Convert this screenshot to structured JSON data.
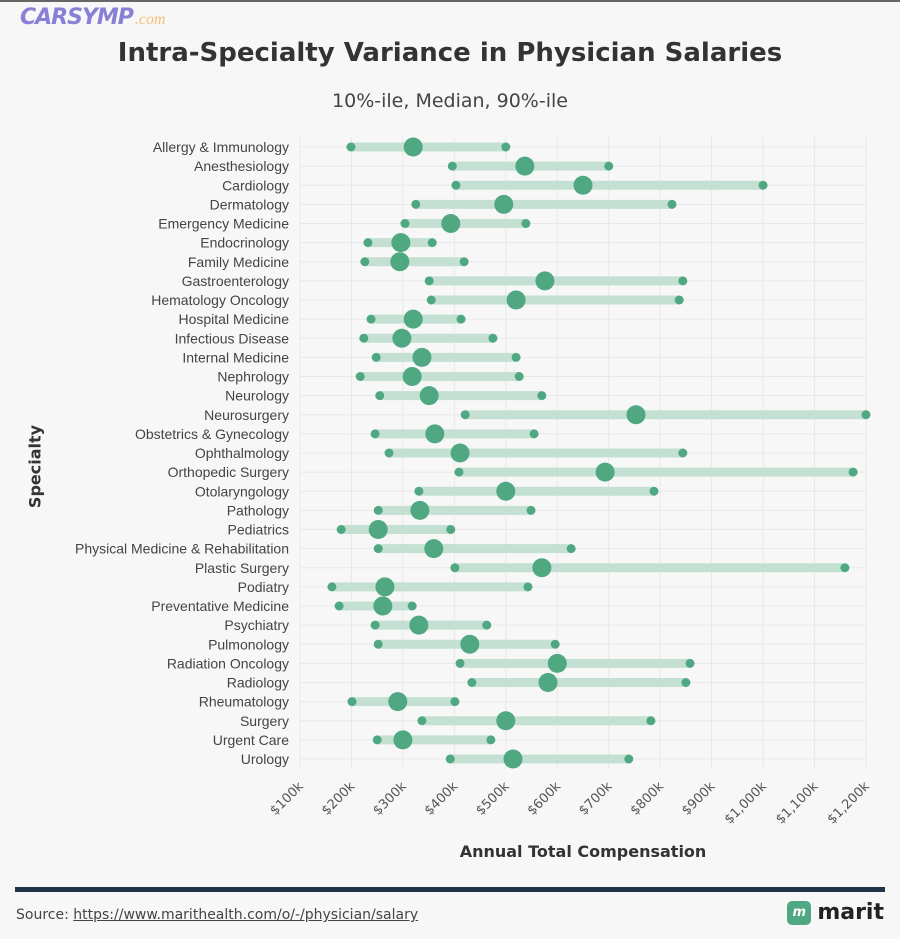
{
  "logo": {
    "text": "CARSYMP.com"
  },
  "colors": {
    "dot": "#4fa882",
    "bar": "#c3e0d2",
    "grid": "#e8e8e8"
  },
  "chart_data": {
    "type": "dumbbell",
    "title": "Intra-Specialty Variance in Physician Salaries",
    "subtitle": "10%-ile, Median, 90%-ile",
    "xlabel": "Annual Total Compensation",
    "ylabel": "Specialty",
    "xlim": [
      100,
      1200
    ],
    "xunit": "thousand USD",
    "xticks": [
      100,
      200,
      300,
      400,
      500,
      600,
      700,
      800,
      900,
      1000,
      1100,
      1200
    ],
    "xtick_labels": [
      "$100k",
      "$200k",
      "$300k",
      "$400k",
      "$500k",
      "$600k",
      "$700k",
      "$800k",
      "$900k",
      "$1,000k",
      "$1,100k",
      "$1,200k"
    ],
    "grid": true,
    "categories": [
      "Allergy & Immunology",
      "Anesthesiology",
      "Cardiology",
      "Dermatology",
      "Emergency Medicine",
      "Endocrinology",
      "Family Medicine",
      "Gastroenterology",
      "Hematology Oncology",
      "Hospital Medicine",
      "Infectious Disease",
      "Internal Medicine",
      "Nephrology",
      "Neurology",
      "Neurosurgery",
      "Obstetrics & Gynecology",
      "Ophthalmology",
      "Orthopedic Surgery",
      "Otolaryngology",
      "Pathology",
      "Pediatrics",
      "Physical Medicine & Rehabilitation",
      "Plastic Surgery",
      "Podiatry",
      "Preventative Medicine",
      "Psychiatry",
      "Pulmonology",
      "Radiation Oncology",
      "Radiology",
      "Rheumatology",
      "Surgery",
      "Urgent Care",
      "Urology"
    ],
    "p10": [
      199,
      396,
      403,
      325,
      304,
      232,
      226,
      351,
      355,
      238,
      224,
      248,
      217,
      255,
      421,
      246,
      273,
      409,
      331,
      252,
      180,
      252,
      401,
      162,
      176,
      246,
      252,
      411,
      434,
      201,
      337,
      250,
      392
    ],
    "median": [
      320,
      537,
      650,
      496,
      393,
      296,
      294,
      576,
      520,
      320,
      298,
      337,
      318,
      351,
      753,
      362,
      411,
      693,
      500,
      333,
      252,
      360,
      570,
      265,
      261,
      331,
      430,
      600,
      582,
      290,
      500,
      300,
      514
    ],
    "p90": [
      500,
      700,
      1000,
      823,
      539,
      357,
      419,
      844,
      837,
      413,
      475,
      520,
      526,
      570,
      1200,
      555,
      844,
      1175,
      788,
      549,
      393,
      627,
      1159,
      543,
      318,
      463,
      596,
      858,
      850,
      401,
      782,
      471,
      739
    ]
  },
  "footer": {
    "source_label": "Source: ",
    "source_link": "https://www.marithealth.com/o/-/physician/salary",
    "brand": "marit",
    "brand_icon": "m"
  }
}
